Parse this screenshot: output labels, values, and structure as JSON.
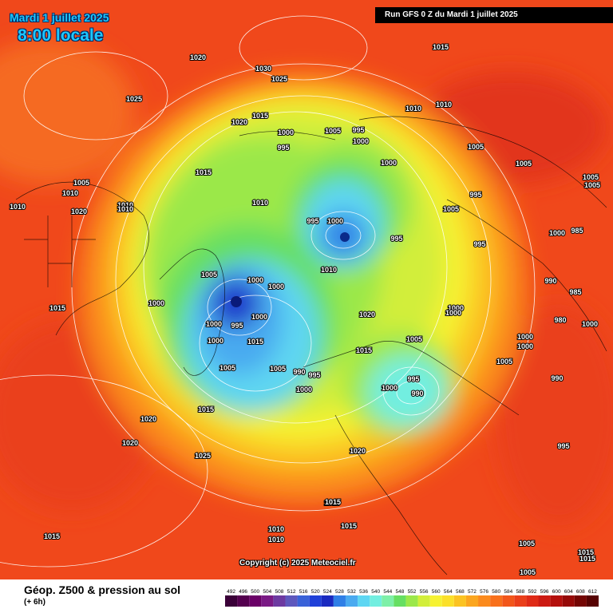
{
  "header": {
    "date": "Mardi 1 juillet 2025",
    "time": "8:00 locale",
    "run": "Run GFS 0 Z du Mardi 1 juillet 2025"
  },
  "copyright": "Copyright (c) 2025 Meteociel.fr",
  "legend": {
    "title": "Géop. Z500 & pression au sol",
    "subtitle": "(+ 6h)",
    "scale_values": [
      "492",
      "496",
      "500",
      "504",
      "508",
      "512",
      "516",
      "520",
      "524",
      "528",
      "532",
      "536",
      "540",
      "544",
      "548",
      "552",
      "556",
      "560",
      "564",
      "568",
      "572",
      "576",
      "580",
      "584",
      "588",
      "592",
      "596",
      "600",
      "604",
      "608",
      "612"
    ],
    "scale_colors": [
      "#3a0038",
      "#54004f",
      "#6a0067",
      "#7a1a85",
      "#6d3aa1",
      "#5e58bd",
      "#3a62d8",
      "#1f40d8",
      "#1a2ac0",
      "#2f7fe6",
      "#4aaaf0",
      "#5ed6f2",
      "#72eee0",
      "#7ef0a8",
      "#66df62",
      "#9be84a",
      "#d2ee3a",
      "#f6f232",
      "#fbe02a",
      "#fbc322",
      "#fba61f",
      "#fb8a1c",
      "#f8701b",
      "#f2561a",
      "#ea3f1a",
      "#df2a16",
      "#cc1a12",
      "#b4100c",
      "#960a08",
      "#740604",
      "#560202"
    ]
  },
  "pressure_labels": [
    {
      "v": "1020"
    },
    {
      "v": "1030"
    },
    {
      "v": "1025"
    },
    {
      "v": "1015"
    },
    {
      "v": "1025"
    },
    {
      "v": "1020"
    },
    {
      "v": "1015"
    },
    {
      "v": "1000"
    },
    {
      "v": "1005"
    },
    {
      "v": "995"
    },
    {
      "v": "1000"
    },
    {
      "v": "995"
    },
    {
      "v": "1000"
    },
    {
      "v": "1010"
    },
    {
      "v": "1010"
    },
    {
      "v": "1005"
    },
    {
      "v": "1005"
    },
    {
      "v": "1005"
    },
    {
      "v": "1005"
    },
    {
      "v": "1015"
    },
    {
      "v": "1005"
    },
    {
      "v": "1010"
    },
    {
      "v": "1010"
    },
    {
      "v": "1020"
    },
    {
      "v": "1010"
    },
    {
      "v": "1010"
    },
    {
      "v": "1010"
    },
    {
      "v": "995"
    },
    {
      "v": "1000"
    },
    {
      "v": "995"
    },
    {
      "v": "1005"
    },
    {
      "v": "995"
    },
    {
      "v": "995"
    },
    {
      "v": "1000"
    },
    {
      "v": "985"
    },
    {
      "v": "1005"
    },
    {
      "v": "1000"
    },
    {
      "v": "1000"
    },
    {
      "v": "1000"
    },
    {
      "v": "1000"
    },
    {
      "v": "1010"
    },
    {
      "v": "990"
    },
    {
      "v": "985"
    },
    {
      "v": "1015"
    },
    {
      "v": "1000"
    },
    {
      "v": "1000"
    },
    {
      "v": "995"
    },
    {
      "v": "1000"
    },
    {
      "v": "1015"
    },
    {
      "v": "1005"
    },
    {
      "v": "1000"
    },
    {
      "v": "1020"
    },
    {
      "v": "1000"
    },
    {
      "v": "980"
    },
    {
      "v": "1000"
    },
    {
      "v": "1000"
    },
    {
      "v": "1005"
    },
    {
      "v": "1015"
    },
    {
      "v": "1005"
    },
    {
      "v": "990"
    },
    {
      "v": "995"
    },
    {
      "v": "1000"
    },
    {
      "v": "995"
    },
    {
      "v": "1000"
    },
    {
      "v": "990"
    },
    {
      "v": "1005"
    },
    {
      "v": "990"
    },
    {
      "v": "1015"
    },
    {
      "v": "1020"
    },
    {
      "v": "1020"
    },
    {
      "v": "995"
    },
    {
      "v": "1025"
    },
    {
      "v": "1020"
    },
    {
      "v": "1015"
    },
    {
      "v": "1015"
    },
    {
      "v": "1010"
    },
    {
      "v": "1010"
    },
    {
      "v": "1005"
    },
    {
      "v": "1015"
    },
    {
      "v": "1015"
    },
    {
      "v": "1005"
    },
    {
      "v": "1015"
    },
    {
      "v": "1015"
    }
  ]
}
